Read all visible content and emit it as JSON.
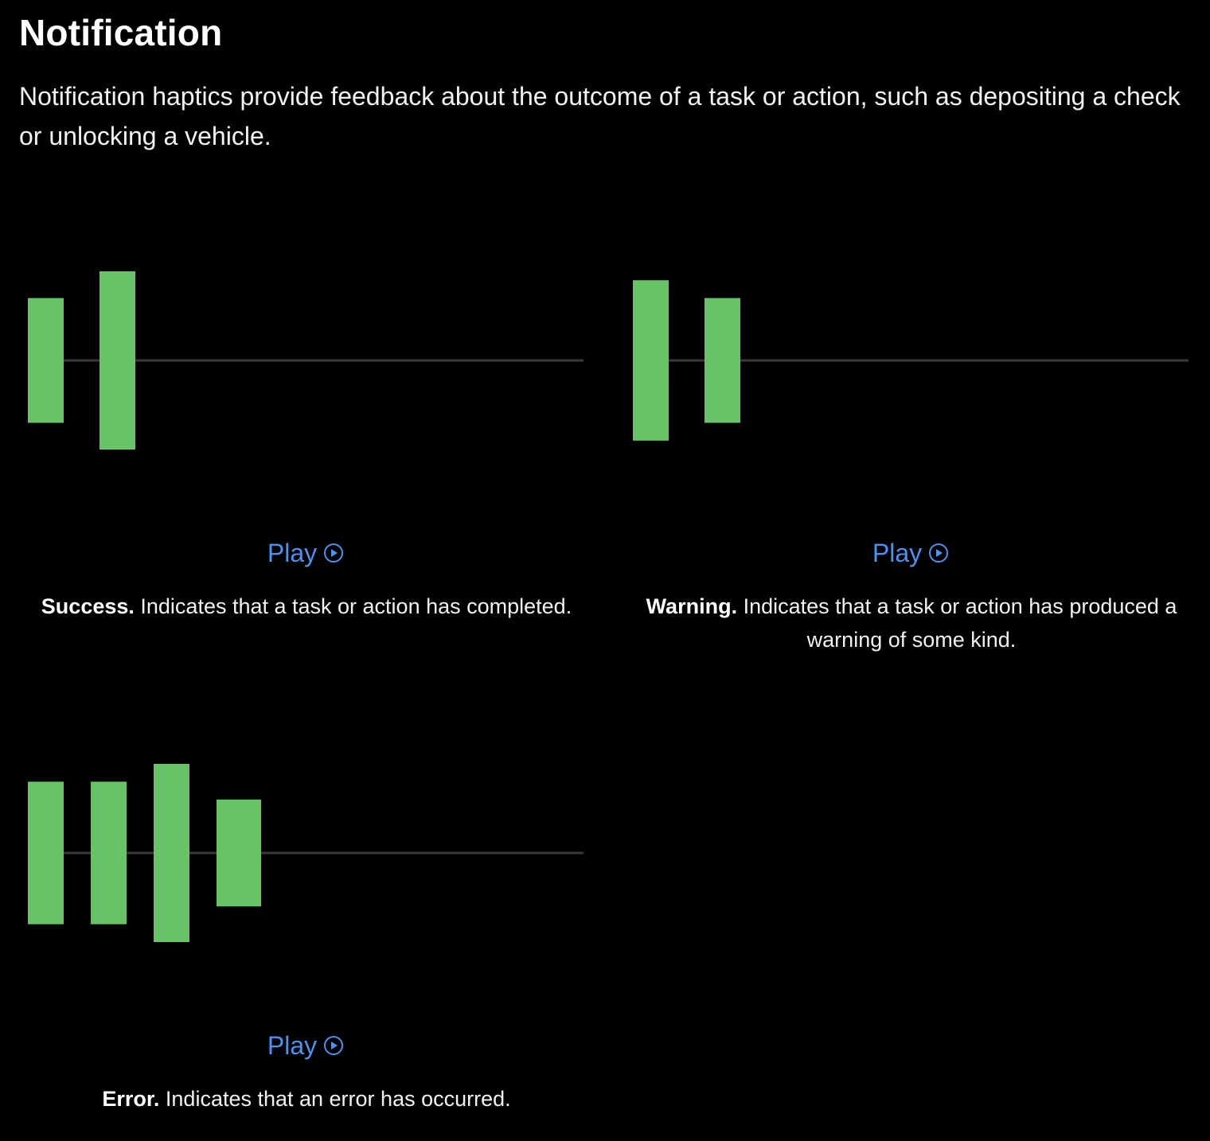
{
  "title": "Notification",
  "intro": "Notification haptics provide feedback about the outcome of a task or action, such as depositing a check or unlocking a vehicle.",
  "colors": {
    "background": "#000000",
    "bar": "#66c466",
    "baseline": "#3a3a3a",
    "link": "#4b93f1"
  },
  "cards": [
    {
      "id": "success",
      "play_label": "Play",
      "play_icon": "play-circle-icon",
      "term": "Success.",
      "description": " Indicates that a task or action has completed.",
      "pulses": [
        0.7,
        1.0
      ]
    },
    {
      "id": "warning",
      "play_label": "Play",
      "play_icon": "play-circle-icon",
      "term": "Warning.",
      "description": " Indicates that a task or action has produced a warning of some kind.",
      "pulses": [
        0.9,
        0.7
      ]
    },
    {
      "id": "error",
      "play_label": "Play",
      "play_icon": "play-circle-icon",
      "term": "Error.",
      "description": " Indicates that an error has occurred.",
      "pulses": [
        0.8,
        0.8,
        1.0,
        0.6
      ]
    }
  ]
}
